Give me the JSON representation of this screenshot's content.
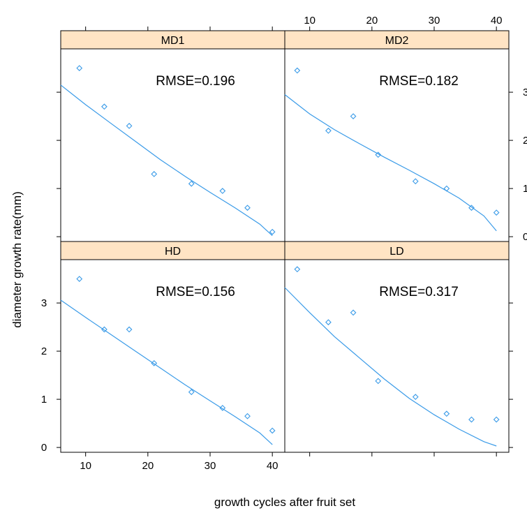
{
  "colors": {
    "strip": "#ffe4c4",
    "points": "#3a9be8",
    "curve": "#3a9be8",
    "frame": "#000000"
  },
  "chart_data": {
    "type": "scatter",
    "layout": "2x2 lattice panels with fitted curves",
    "xlabel": "growth cycles after fruit set",
    "ylabel": "diameter growth rate(mm)",
    "xlim": [
      6,
      42
    ],
    "ylim": [
      -0.1,
      3.9
    ],
    "x_ticks": [
      10,
      20,
      30,
      40
    ],
    "y_ticks": [
      0,
      1,
      2,
      3
    ],
    "right_axis_tick_labels": [
      "3",
      "2",
      "1",
      "0"
    ],
    "panels": [
      {
        "name": "MD1",
        "annotation": "RMSE=0.196",
        "points": {
          "x": [
            9,
            13,
            17,
            21,
            27,
            32,
            36,
            40
          ],
          "y": [
            3.5,
            2.7,
            2.3,
            1.3,
            1.1,
            0.95,
            0.6,
            0.1
          ]
        },
        "fit": {
          "x": [
            6,
            10,
            14,
            18,
            22,
            26,
            30,
            34,
            38,
            40
          ],
          "y": [
            3.15,
            2.74,
            2.36,
            1.98,
            1.6,
            1.25,
            0.92,
            0.6,
            0.26,
            0.02
          ]
        }
      },
      {
        "name": "MD2",
        "annotation": "RMSE=0.182",
        "points": {
          "x": [
            8,
            13,
            17,
            21,
            27,
            32,
            36,
            40
          ],
          "y": [
            3.45,
            2.2,
            2.5,
            1.7,
            1.15,
            1.0,
            0.6,
            0.5
          ]
        },
        "fit": {
          "x": [
            6,
            10,
            14,
            18,
            22,
            26,
            30,
            34,
            38,
            40
          ],
          "y": [
            2.95,
            2.55,
            2.22,
            1.93,
            1.65,
            1.38,
            1.1,
            0.8,
            0.43,
            0.12
          ]
        }
      },
      {
        "name": "HD",
        "annotation": "RMSE=0.156",
        "points": {
          "x": [
            9,
            13,
            17,
            21,
            27,
            32,
            36,
            40
          ],
          "y": [
            3.5,
            2.45,
            2.45,
            1.75,
            1.15,
            0.82,
            0.65,
            0.35
          ]
        },
        "fit": {
          "x": [
            6,
            10,
            14,
            18,
            22,
            26,
            30,
            34,
            38,
            40
          ],
          "y": [
            3.06,
            2.7,
            2.35,
            2.0,
            1.65,
            1.3,
            0.97,
            0.64,
            0.3,
            0.06
          ]
        }
      },
      {
        "name": "LD",
        "annotation": "RMSE=0.317",
        "points": {
          "x": [
            8,
            13,
            17,
            21,
            27,
            32,
            36,
            40
          ],
          "y": [
            3.7,
            2.6,
            2.8,
            1.38,
            1.05,
            0.7,
            0.58,
            0.58
          ]
        },
        "fit": {
          "x": [
            6,
            10,
            14,
            18,
            22,
            26,
            30,
            34,
            38,
            40
          ],
          "y": [
            3.32,
            2.8,
            2.3,
            1.86,
            1.42,
            1.02,
            0.68,
            0.38,
            0.12,
            0.03
          ]
        }
      }
    ]
  }
}
